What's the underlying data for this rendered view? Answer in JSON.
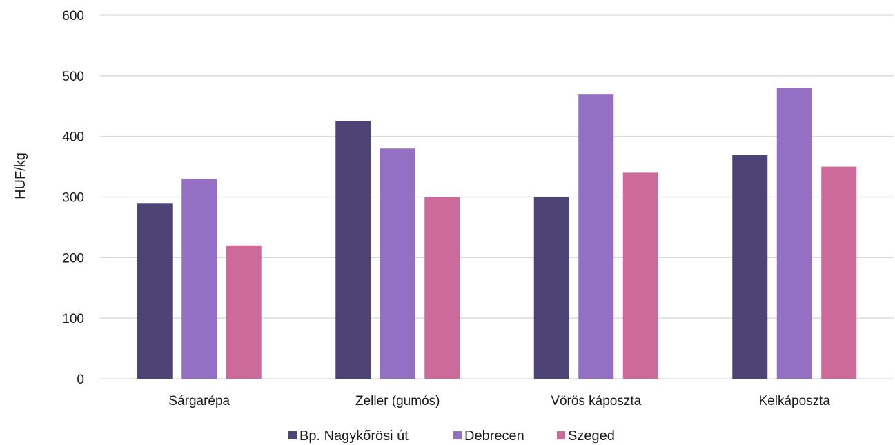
{
  "chart_data": {
    "type": "bar",
    "title": "",
    "xlabel": "",
    "ylabel": "HUF/kg",
    "ylim": [
      0,
      600
    ],
    "yticks": [
      0,
      100,
      200,
      300,
      400,
      500,
      600
    ],
    "grid": true,
    "legend_position": "bottom",
    "categories": [
      "Sárgarépa",
      "Zeller (gumós)",
      "Vörös káposzta",
      "Kelkáposzta"
    ],
    "series": [
      {
        "name": "Bp. Nagykőrösi út",
        "color": "#4d4375",
        "values": [
          290,
          425,
          300,
          370
        ]
      },
      {
        "name": "Debrecen",
        "color": "#9470c4",
        "values": [
          330,
          380,
          470,
          480
        ]
      },
      {
        "name": "Szeged",
        "color": "#cc6b99",
        "values": [
          220,
          300,
          340,
          350
        ]
      }
    ]
  }
}
